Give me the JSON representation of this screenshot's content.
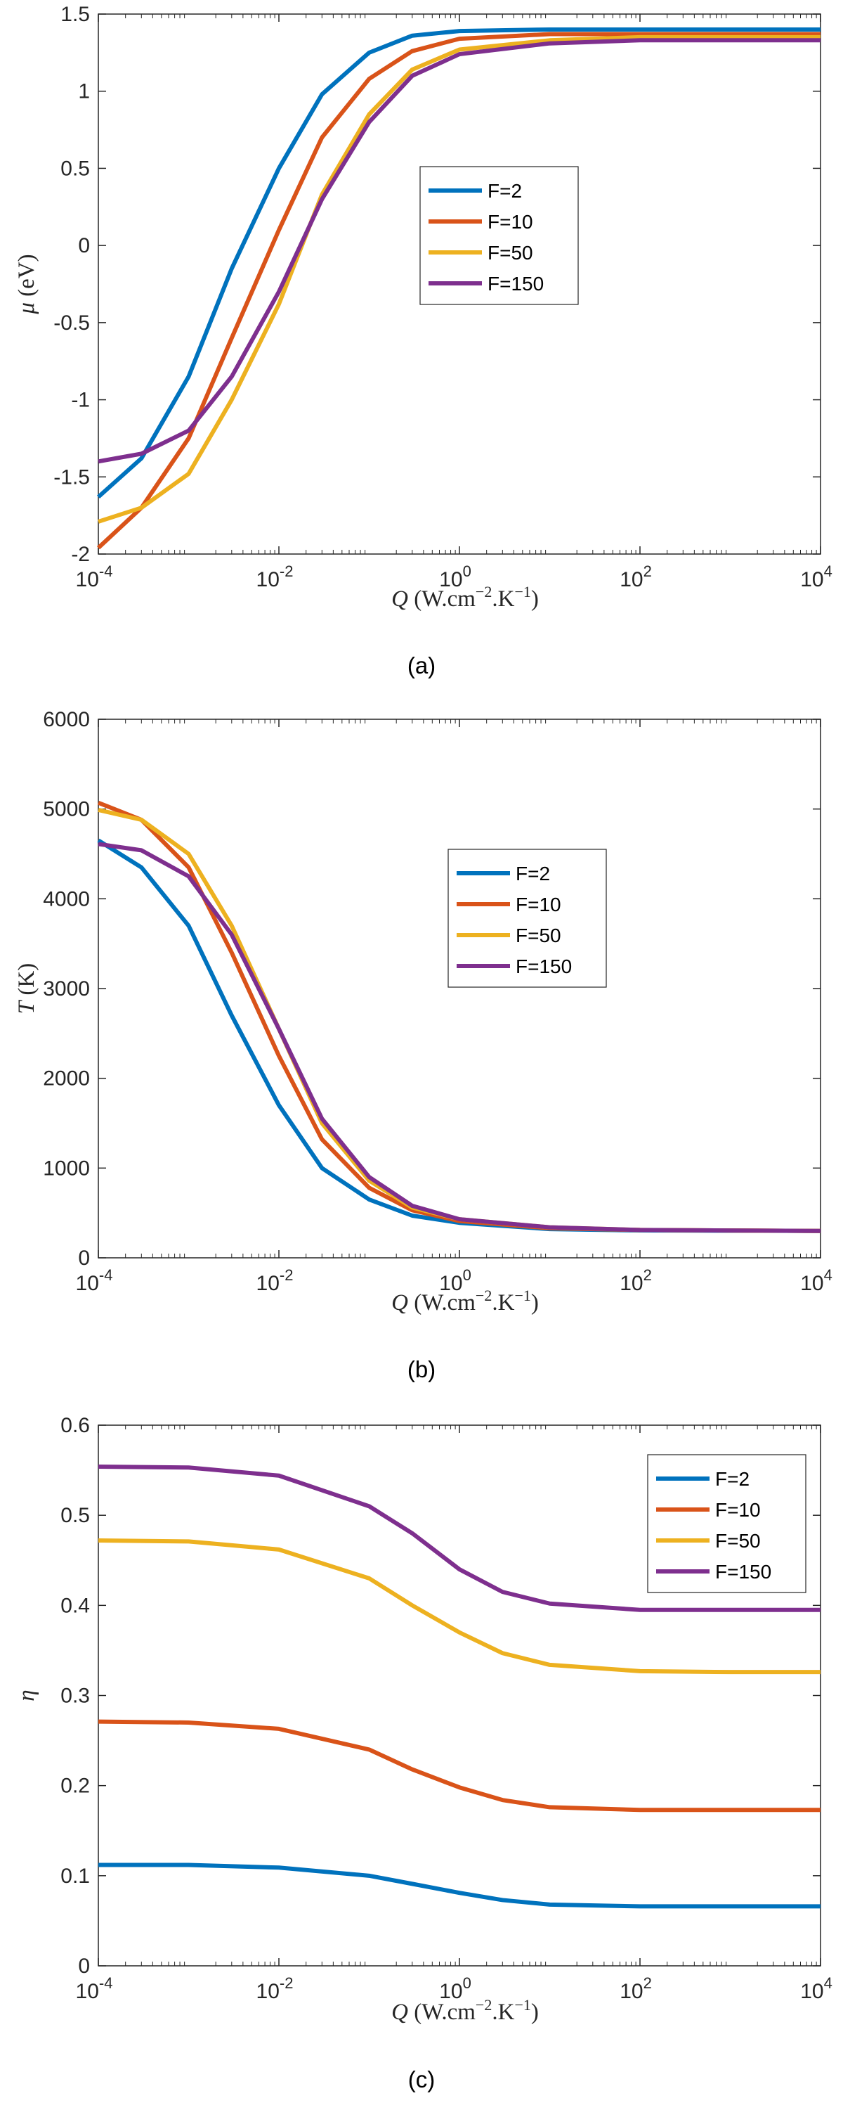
{
  "colors": {
    "F=2": "#0072BD",
    "F=10": "#D95319",
    "F=50": "#EDB120",
    "F=150": "#7E2F8E",
    "axis": "#262626"
  },
  "chart_data": [
    {
      "type": "line",
      "caption": "(a)",
      "xscale": "log",
      "xlim": [
        0.0001,
        10000
      ],
      "ylim": [
        -2,
        1.5
      ],
      "x_ticks": [
        {
          "base": "10",
          "exp": "-4"
        },
        {
          "base": "10",
          "exp": "-2"
        },
        {
          "base": "10",
          "exp": "0"
        },
        {
          "base": "10",
          "exp": "2"
        },
        {
          "base": "10",
          "exp": "4"
        }
      ],
      "y_ticks": [
        "-2",
        "-1.5",
        "-1",
        "-0.5",
        "0",
        "0.5",
        "1",
        "1.5"
      ],
      "xlabel": {
        "sym": "Q",
        "unit_a": " (W.cm",
        "exp1": "−2",
        "unit_b": ".K",
        "exp2": "−1",
        "unit_c": ")"
      },
      "ylabel": {
        "sym": "μ",
        "unit": " (eV)"
      },
      "legend": {
        "placement": "center"
      },
      "series": [
        {
          "name": "F=2",
          "x": [
            0.0001,
            0.0003,
            0.001,
            0.003,
            0.01,
            0.03,
            0.1,
            0.3,
            1,
            10,
            100,
            10000
          ],
          "y": [
            -1.63,
            -1.38,
            -0.85,
            -0.15,
            0.5,
            0.98,
            1.25,
            1.36,
            1.39,
            1.4,
            1.4,
            1.4
          ]
        },
        {
          "name": "F=10",
          "x": [
            0.0001,
            0.0003,
            0.001,
            0.003,
            0.01,
            0.03,
            0.1,
            0.3,
            1,
            10,
            100,
            10000
          ],
          "y": [
            -1.96,
            -1.7,
            -1.25,
            -0.6,
            0.1,
            0.7,
            1.08,
            1.26,
            1.34,
            1.37,
            1.37,
            1.37
          ]
        },
        {
          "name": "F=50",
          "x": [
            0.0001,
            0.0003,
            0.001,
            0.003,
            0.01,
            0.03,
            0.1,
            0.3,
            1,
            10,
            100,
            10000
          ],
          "y": [
            -1.79,
            -1.7,
            -1.48,
            -1.0,
            -0.38,
            0.33,
            0.85,
            1.14,
            1.27,
            1.33,
            1.35,
            1.35
          ]
        },
        {
          "name": "F=150",
          "x": [
            0.0001,
            0.0003,
            0.001,
            0.003,
            0.01,
            0.03,
            0.1,
            0.3,
            1,
            10,
            100,
            10000
          ],
          "y": [
            -1.4,
            -1.35,
            -1.2,
            -0.85,
            -0.3,
            0.3,
            0.8,
            1.1,
            1.24,
            1.31,
            1.33,
            1.33
          ]
        }
      ]
    },
    {
      "type": "line",
      "caption": "(b)",
      "xscale": "log",
      "xlim": [
        0.0001,
        10000
      ],
      "ylim": [
        0,
        6000
      ],
      "x_ticks": [
        {
          "base": "10",
          "exp": "-4"
        },
        {
          "base": "10",
          "exp": "-2"
        },
        {
          "base": "10",
          "exp": "0"
        },
        {
          "base": "10",
          "exp": "2"
        },
        {
          "base": "10",
          "exp": "4"
        }
      ],
      "y_ticks": [
        "0",
        "1000",
        "2000",
        "3000",
        "4000",
        "5000",
        "6000"
      ],
      "xlabel": {
        "sym": "Q",
        "unit_a": " (W.cm",
        "exp1": "−2",
        "unit_b": ".K",
        "exp2": "−1",
        "unit_c": ")"
      },
      "ylabel": {
        "sym": "T",
        "unit": " (K)"
      },
      "legend": {
        "placement": "center"
      },
      "series": [
        {
          "name": "F=2",
          "x": [
            0.0001,
            0.0003,
            0.001,
            0.003,
            0.01,
            0.03,
            0.1,
            0.3,
            1,
            10,
            100,
            10000
          ],
          "y": [
            4650,
            4350,
            3700,
            2700,
            1700,
            1000,
            650,
            470,
            390,
            320,
            305,
            300
          ]
        },
        {
          "name": "F=10",
          "x": [
            0.0001,
            0.0003,
            0.001,
            0.003,
            0.01,
            0.03,
            0.1,
            0.3,
            1,
            10,
            100,
            10000
          ],
          "y": [
            5070,
            4880,
            4350,
            3400,
            2250,
            1320,
            780,
            530,
            410,
            330,
            310,
            300
          ]
        },
        {
          "name": "F=50",
          "x": [
            0.0001,
            0.0003,
            0.001,
            0.003,
            0.01,
            0.03,
            0.1,
            0.3,
            1,
            10,
            100,
            10000
          ],
          "y": [
            4990,
            4880,
            4500,
            3700,
            2550,
            1500,
            860,
            560,
            430,
            340,
            310,
            300
          ]
        },
        {
          "name": "F=150",
          "x": [
            0.0001,
            0.0003,
            0.001,
            0.003,
            0.01,
            0.03,
            0.1,
            0.3,
            1,
            10,
            100,
            10000
          ],
          "y": [
            4610,
            4540,
            4250,
            3600,
            2550,
            1550,
            900,
            580,
            430,
            340,
            310,
            300
          ]
        }
      ]
    },
    {
      "type": "line",
      "caption": "(c)",
      "xscale": "log",
      "xlim": [
        0.0001,
        10000
      ],
      "ylim": [
        0,
        0.6
      ],
      "x_ticks": [
        {
          "base": "10",
          "exp": "-4"
        },
        {
          "base": "10",
          "exp": "-2"
        },
        {
          "base": "10",
          "exp": "0"
        },
        {
          "base": "10",
          "exp": "2"
        },
        {
          "base": "10",
          "exp": "4"
        }
      ],
      "y_ticks": [
        "0",
        "0.1",
        "0.2",
        "0.3",
        "0.4",
        "0.5",
        "0.6"
      ],
      "xlabel": {
        "sym": "Q",
        "unit_a": " (W.cm",
        "exp1": "−2",
        "unit_b": ".K",
        "exp2": "−1",
        "unit_c": ")"
      },
      "ylabel": {
        "sym": "η",
        "unit": ""
      },
      "legend": {
        "placement": "top-right"
      },
      "series": [
        {
          "name": "F=2",
          "x": [
            0.0001,
            0.001,
            0.01,
            0.1,
            0.3,
            1,
            3,
            10,
            100,
            1000,
            10000
          ],
          "y": [
            0.112,
            0.112,
            0.109,
            0.1,
            0.091,
            0.081,
            0.073,
            0.068,
            0.066,
            0.066,
            0.066
          ]
        },
        {
          "name": "F=10",
          "x": [
            0.0001,
            0.001,
            0.01,
            0.1,
            0.3,
            1,
            3,
            10,
            100,
            1000,
            10000
          ],
          "y": [
            0.271,
            0.27,
            0.263,
            0.24,
            0.218,
            0.198,
            0.184,
            0.176,
            0.173,
            0.173,
            0.173
          ]
        },
        {
          "name": "F=50",
          "x": [
            0.0001,
            0.001,
            0.01,
            0.1,
            0.3,
            1,
            3,
            10,
            100,
            1000,
            10000
          ],
          "y": [
            0.472,
            0.471,
            0.462,
            0.43,
            0.4,
            0.37,
            0.347,
            0.334,
            0.327,
            0.326,
            0.326
          ]
        },
        {
          "name": "F=150",
          "x": [
            0.0001,
            0.001,
            0.01,
            0.1,
            0.3,
            1,
            3,
            10,
            100,
            1000,
            10000
          ],
          "y": [
            0.554,
            0.553,
            0.544,
            0.51,
            0.48,
            0.44,
            0.415,
            0.402,
            0.395,
            0.395,
            0.395
          ]
        }
      ]
    }
  ]
}
